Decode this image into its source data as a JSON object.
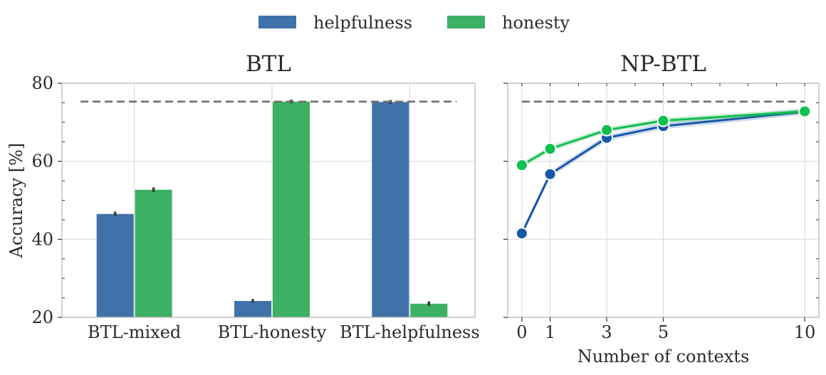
{
  "colors": {
    "helpfulness": "#3f72a8",
    "honesty": "#3cb064",
    "helpfulness_line": "#1558a8",
    "honesty_line": "#0ec04e",
    "reference": "#707070",
    "grid": "#dcdcdc",
    "axes": "#c4c4c4"
  },
  "legend": {
    "items": [
      {
        "label": "helpfulness",
        "color_key": "helpfulness"
      },
      {
        "label": "honesty",
        "color_key": "honesty"
      }
    ]
  },
  "chart_data": [
    {
      "type": "bar",
      "title": "BTL",
      "xlabel": "",
      "ylabel": "Accuracy [%]",
      "ylim": [
        20,
        80
      ],
      "yticks": [
        "20",
        "40",
        "60",
        "80"
      ],
      "categories": [
        "BTL-mixed",
        "BTL-honesty",
        "BTL-helpfulness"
      ],
      "series": [
        {
          "name": "helpfulness",
          "values": [
            46.5,
            24.2,
            75.2
          ],
          "err": [
            0.6,
            0.5,
            0.5
          ]
        },
        {
          "name": "honesty",
          "values": [
            52.7,
            75.3,
            23.5
          ],
          "err": [
            0.6,
            0.5,
            0.6
          ]
        }
      ],
      "reference_line": 75.3,
      "grid": true
    },
    {
      "type": "line",
      "title": "NP-BTL",
      "xlabel": "Number of contexts",
      "ylabel": "",
      "ylim": [
        20,
        80
      ],
      "xlim": [
        -0.5,
        10.5
      ],
      "xticks": [
        0,
        1,
        3,
        5,
        10
      ],
      "xtick_labels": [
        "0",
        "1",
        "3",
        "5",
        "10"
      ],
      "series": [
        {
          "name": "helpfulness",
          "x": [
            0,
            1,
            3,
            5,
            10
          ],
          "y": [
            41.5,
            56.7,
            66.0,
            69.0,
            72.7
          ],
          "band": 0.8
        },
        {
          "name": "honesty",
          "x": [
            0,
            1,
            3,
            5,
            10
          ],
          "y": [
            59.0,
            63.2,
            68.0,
            70.4,
            72.8
          ],
          "band": 0.7
        }
      ],
      "reference_line": 75.3,
      "grid": true
    }
  ]
}
